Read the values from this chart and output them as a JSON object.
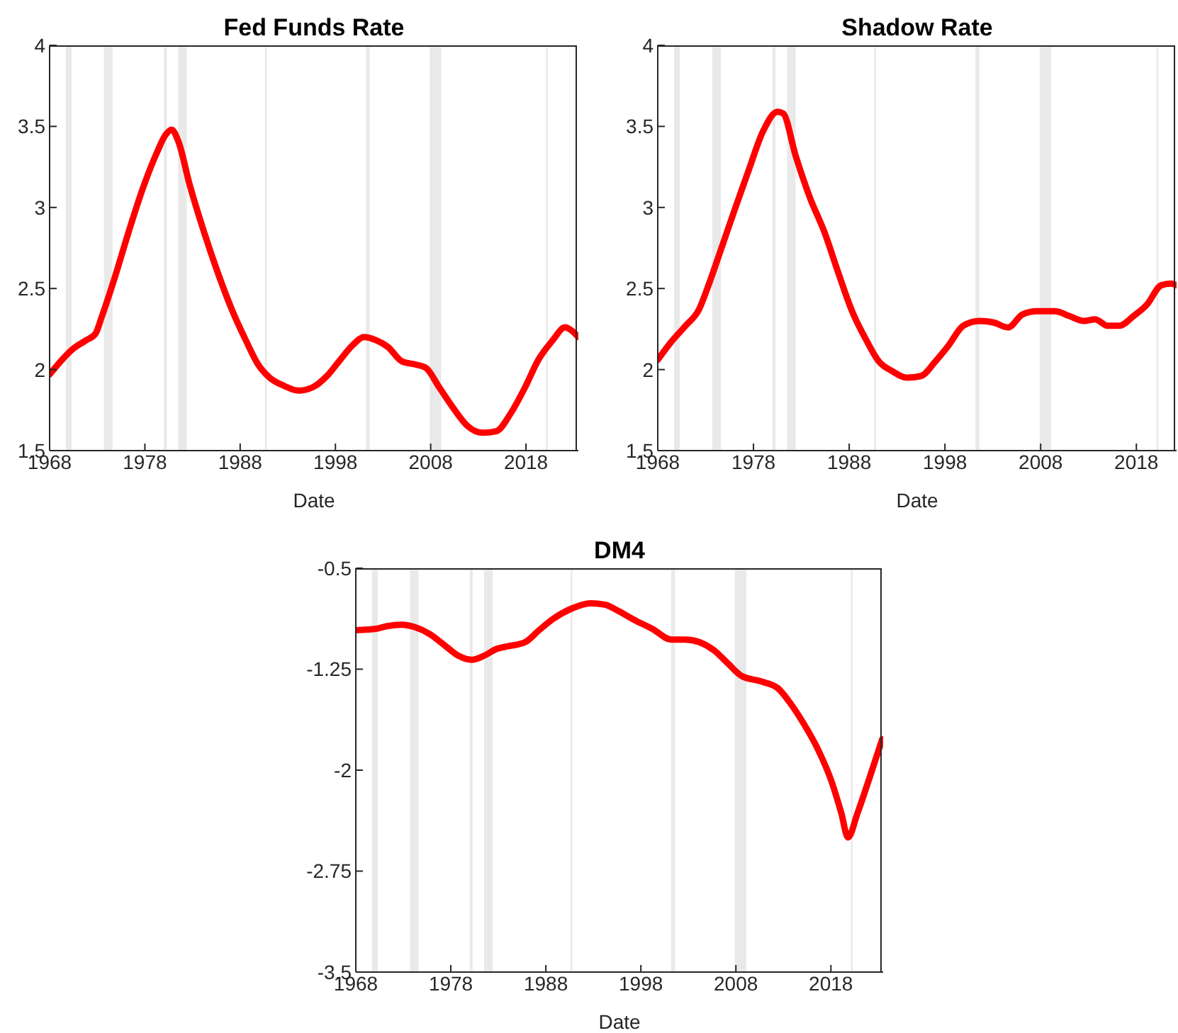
{
  "chart_data": [
    {
      "type": "line",
      "title": "Fed Funds Rate",
      "xlabel": "Date",
      "xlim": [
        1968,
        2023.5
      ],
      "xticks": [
        1968,
        1978,
        1988,
        1998,
        2008,
        2018
      ],
      "ylim": [
        1.5,
        4
      ],
      "yticks": [
        1.5,
        2,
        2.5,
        3,
        3.5,
        4
      ],
      "bands": [
        {
          "axis": "x",
          "from": 1969.7,
          "to": 1970.3,
          "color": "#e0e0e0"
        },
        {
          "axis": "x",
          "from": 1973.7,
          "to": 1974.6,
          "color": "#e0e0e0"
        },
        {
          "axis": "x",
          "from": 1980.0,
          "to": 1980.3,
          "color": "#e0e0e0"
        },
        {
          "axis": "x",
          "from": 1981.5,
          "to": 1982.4,
          "color": "#e0e0e0"
        },
        {
          "axis": "x",
          "from": 1990.6,
          "to": 1990.8,
          "color": "#e0e0e0"
        },
        {
          "axis": "x",
          "from": 2001.2,
          "to": 2001.6,
          "color": "#e0e0e0"
        },
        {
          "axis": "x",
          "from": 2007.9,
          "to": 2009.1,
          "color": "#e0e0e0"
        },
        {
          "axis": "x",
          "from": 2020.1,
          "to": 2020.3,
          "color": "#e0e0e0"
        }
      ],
      "x": [
        1968,
        1969.3,
        1970.3,
        1971.8,
        1972.8,
        1973.5,
        1974.8,
        1976.3,
        1977.8,
        1979.2,
        1980.2,
        1980.8,
        1981.5,
        1982.7,
        1984.2,
        1985.7,
        1987.2,
        1988.6,
        1989.9,
        1991.1,
        1992.6,
        1994.1,
        1995.6,
        1997.1,
        1998.5,
        1999.8,
        2001.0,
        2002.3,
        2003.5,
        2005.0,
        2006.5,
        2007.5,
        2008.9,
        2010.4,
        2011.9,
        2013.4,
        2014.9,
        2016.4,
        2017.9,
        2019.3,
        2020.8,
        2022.1,
        2022.8,
        2023.5
      ],
      "series": [
        {
          "color": "#ff0000",
          "values": [
            1.97,
            2.06,
            2.12,
            2.18,
            2.22,
            2.33,
            2.56,
            2.85,
            3.12,
            3.33,
            3.45,
            3.48,
            3.41,
            3.14,
            2.85,
            2.59,
            2.36,
            2.18,
            2.03,
            1.95,
            1.9,
            1.87,
            1.89,
            1.96,
            2.06,
            2.15,
            2.2,
            2.18,
            2.14,
            2.05,
            2.03,
            2.01,
            1.89,
            1.76,
            1.65,
            1.61,
            1.62,
            1.73,
            1.89,
            2.06,
            2.18,
            2.26,
            2.24,
            2.2
          ]
        }
      ]
    },
    {
      "type": "line",
      "title": "Shadow Rate",
      "xlabel": "Date",
      "xlim": [
        1968,
        2022.2
      ],
      "xticks": [
        1968,
        1978,
        1988,
        1998,
        2008,
        2018
      ],
      "ylim": [
        1.5,
        4
      ],
      "yticks": [
        1.5,
        2,
        2.5,
        3,
        3.5,
        4
      ],
      "bands": [
        {
          "axis": "x",
          "from": 1969.7,
          "to": 1970.3,
          "color": "#e0e0e0"
        },
        {
          "axis": "x",
          "from": 1973.7,
          "to": 1974.6,
          "color": "#e0e0e0"
        },
        {
          "axis": "x",
          "from": 1980.0,
          "to": 1980.3,
          "color": "#e0e0e0"
        },
        {
          "axis": "x",
          "from": 1981.5,
          "to": 1982.4,
          "color": "#e0e0e0"
        },
        {
          "axis": "x",
          "from": 1990.6,
          "to": 1990.8,
          "color": "#e0e0e0"
        },
        {
          "axis": "x",
          "from": 2001.2,
          "to": 2001.6,
          "color": "#e0e0e0"
        },
        {
          "axis": "x",
          "from": 2007.9,
          "to": 2009.1,
          "color": "#e0e0e0"
        },
        {
          "axis": "x",
          "from": 2020.1,
          "to": 2020.3,
          "color": "#e0e0e0"
        }
      ],
      "x": [
        1968,
        1969.4,
        1970.9,
        1972.3,
        1973.3,
        1974.6,
        1976.0,
        1977.5,
        1979.0,
        1980.5,
        1981.1,
        1982.4,
        1983.9,
        1985.4,
        1986.9,
        1988.3,
        1989.8,
        1991.1,
        1992.5,
        1994.0,
        1995.5,
        1997.0,
        1998.4,
        1999.9,
        2001.6,
        2003.1,
        2004.6,
        2006.1,
        2007.6,
        2009.5,
        2011.0,
        2012.5,
        2013.7,
        2015.0,
        2016.2,
        2017.7,
        2019.1,
        2020.6,
        2021.6,
        2022.2
      ],
      "series": [
        {
          "color": "#ff0000",
          "values": [
            2.06,
            2.17,
            2.27,
            2.37,
            2.52,
            2.74,
            2.98,
            3.23,
            3.47,
            3.59,
            3.58,
            3.32,
            3.06,
            2.85,
            2.59,
            2.36,
            2.18,
            2.05,
            1.99,
            1.95,
            1.96,
            2.05,
            2.15,
            2.27,
            2.3,
            2.29,
            2.26,
            2.34,
            2.36,
            2.36,
            2.33,
            2.3,
            2.31,
            2.27,
            2.27,
            2.33,
            2.4,
            2.52,
            2.53,
            2.52
          ]
        }
      ]
    },
    {
      "type": "line",
      "title": "DM4",
      "xlabel": "Date",
      "xlim": [
        1968,
        2023.5
      ],
      "xticks": [
        1968,
        1978,
        1988,
        1998,
        2008,
        2018
      ],
      "ylim": [
        -3.5,
        -0.5
      ],
      "yticks": [
        -3.5,
        -2.75,
        -2,
        -1.25,
        -0.5
      ],
      "bands": [
        {
          "axis": "x",
          "from": 1969.7,
          "to": 1970.3,
          "color": "#e0e0e0"
        },
        {
          "axis": "x",
          "from": 1973.7,
          "to": 1974.6,
          "color": "#e0e0e0"
        },
        {
          "axis": "x",
          "from": 1980.0,
          "to": 1980.3,
          "color": "#e0e0e0"
        },
        {
          "axis": "x",
          "from": 1981.5,
          "to": 1982.4,
          "color": "#e0e0e0"
        },
        {
          "axis": "x",
          "from": 1990.6,
          "to": 1990.8,
          "color": "#e0e0e0"
        },
        {
          "axis": "x",
          "from": 2001.2,
          "to": 2001.6,
          "color": "#e0e0e0"
        },
        {
          "axis": "x",
          "from": 2007.9,
          "to": 2009.1,
          "color": "#e0e0e0"
        },
        {
          "axis": "x",
          "from": 2020.1,
          "to": 2020.3,
          "color": "#e0e0e0"
        }
      ],
      "x": [
        1968,
        1970.1,
        1971.3,
        1972.8,
        1974.3,
        1975.8,
        1977.3,
        1978.8,
        1980.2,
        1981.5,
        1982.8,
        1984.0,
        1985.8,
        1987.3,
        1988.7,
        1990.7,
        1992.7,
        1994.2,
        1995.7,
        1997.2,
        1999.2,
        2001.2,
        2002.7,
        2004.2,
        2005.7,
        2007.2,
        2008.6,
        2010.6,
        2012.4,
        2013.6,
        2015.1,
        2016.6,
        2018.1,
        2019.1,
        2019.8,
        2020.8,
        2022.1,
        2023.4
      ],
      "series": [
        {
          "color": "#ff0000",
          "values": [
            -0.96,
            -0.95,
            -0.93,
            -0.92,
            -0.94,
            -0.99,
            -1.07,
            -1.15,
            -1.18,
            -1.15,
            -1.1,
            -1.08,
            -1.05,
            -0.96,
            -0.88,
            -0.8,
            -0.76,
            -0.77,
            -0.82,
            -0.88,
            -0.95,
            -1.03,
            -1.03,
            -1.05,
            -1.11,
            -1.21,
            -1.3,
            -1.34,
            -1.39,
            -1.49,
            -1.65,
            -1.84,
            -2.09,
            -2.32,
            -2.5,
            -2.32,
            -2.05,
            -1.77
          ]
        }
      ]
    }
  ]
}
